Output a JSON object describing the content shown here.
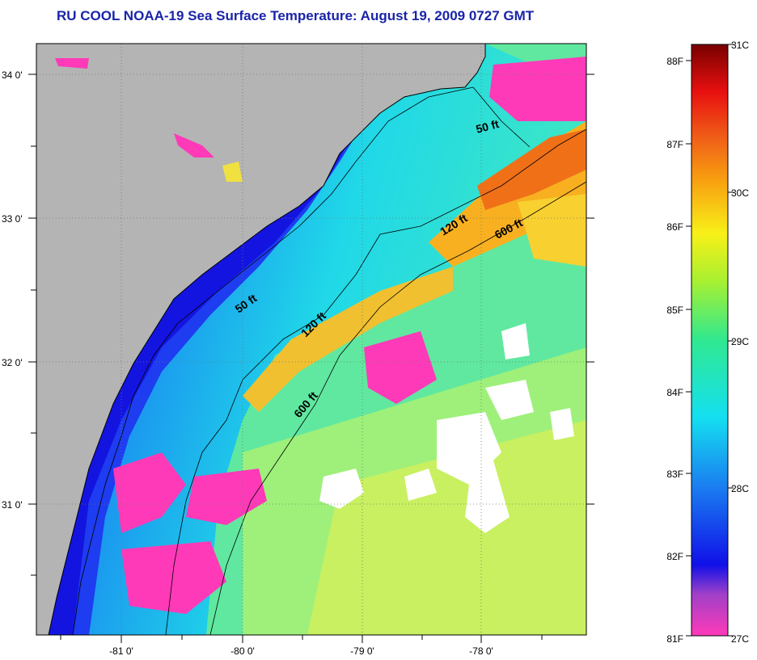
{
  "title": "RU COOL  NOAA-19  Sea Surface Temperature:  August 19, 2009 0727 GMT",
  "colors": {
    "land": "#b4b4b4",
    "title": "#1a24a8",
    "grid": "#6a7a6a",
    "cold": "#ff3ab8",
    "cloud": "#ffffff"
  },
  "map": {
    "lat_labels": [
      "34 0'",
      "33 0'",
      "32 0'",
      "31 0'"
    ],
    "lon_labels": [
      "-81 0'",
      "-80 0'",
      "-79 0'",
      "-78 0'"
    ],
    "contour_labels": [
      "50 ft",
      "120 ft",
      "600 ft",
      "50 ft",
      "120 ft",
      "600 ft"
    ]
  },
  "colorbar": {
    "fahrenheit": [
      "88F",
      "87F",
      "86F",
      "85F",
      "84F",
      "83F",
      "82F",
      "81F"
    ],
    "celsius": [
      "31C",
      "30C",
      "29C",
      "28C",
      "27C"
    ]
  }
}
